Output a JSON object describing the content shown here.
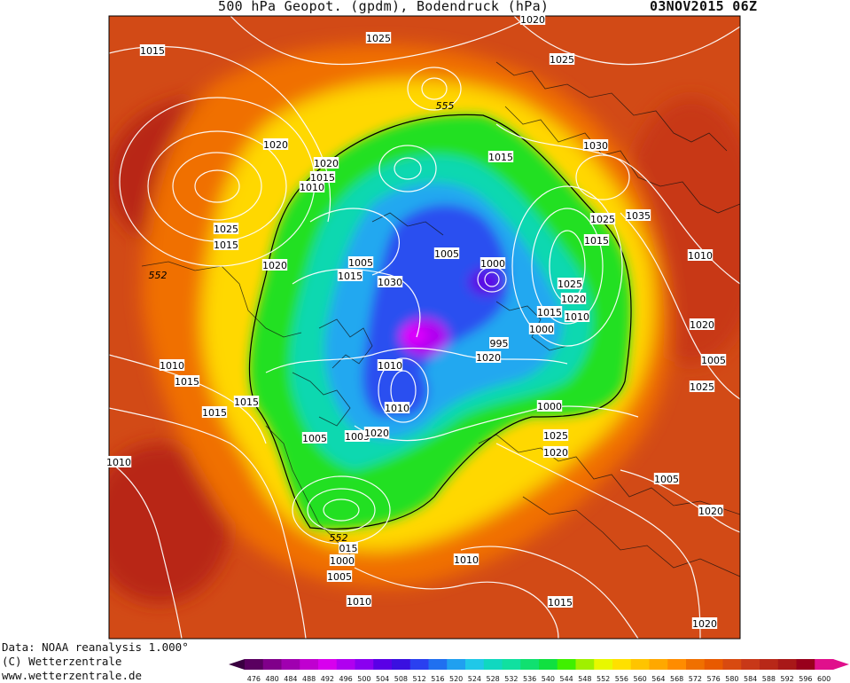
{
  "header": {
    "title": "500 hPa Geopot. (gpdm), Bodendruck (hPa)",
    "date": "03NOV2015 06Z"
  },
  "footer": {
    "data_source": "Data: NOAA reanalysis 1.000°",
    "copyright": "(C) Wetterzentrale",
    "website": "www.wetterzentrale.de"
  },
  "legend": {
    "values": [
      476,
      480,
      484,
      488,
      492,
      496,
      500,
      504,
      508,
      512,
      516,
      520,
      524,
      528,
      532,
      536,
      540,
      544,
      548,
      552,
      556,
      560,
      564,
      568,
      572,
      576,
      580,
      584,
      588,
      592,
      596,
      600
    ],
    "colors": [
      "#5a0060",
      "#80008a",
      "#a000b0",
      "#c000d0",
      "#d800ee",
      "#b000f0",
      "#8a00f0",
      "#5a00e6",
      "#3a10e0",
      "#2a40f0",
      "#2070f0",
      "#20a0f0",
      "#20c8e8",
      "#10d8c0",
      "#10e0a0",
      "#10e070",
      "#10e040",
      "#40f000",
      "#a0f000",
      "#e8f800",
      "#ffe000",
      "#ffc400",
      "#ffa800",
      "#ff8c00",
      "#f07000",
      "#e85a00",
      "#d84a10",
      "#c83818",
      "#b82818",
      "#a81818",
      "#98001c",
      "#e0108c"
    ]
  },
  "isobar_labels": [
    {
      "text": "1015"
    },
    {
      "text": "1025"
    },
    {
      "text": "1020"
    },
    {
      "text": "1025"
    },
    {
      "text": "1020"
    },
    {
      "text": "1020"
    },
    {
      "text": "1015"
    },
    {
      "text": "1010"
    },
    {
      "text": "1015"
    },
    {
      "text": "1030"
    },
    {
      "text": "1025"
    },
    {
      "text": "1015"
    },
    {
      "text": "1020"
    },
    {
      "text": "1025"
    },
    {
      "text": "1035"
    },
    {
      "text": "1015"
    },
    {
      "text": "1010"
    },
    {
      "text": "1005"
    },
    {
      "text": "1000"
    },
    {
      "text": "1005"
    },
    {
      "text": "1015"
    },
    {
      "text": "1030"
    },
    {
      "text": "1025"
    },
    {
      "text": "1020"
    },
    {
      "text": "1015"
    },
    {
      "text": "1010"
    },
    {
      "text": "1000"
    },
    {
      "text": "995"
    },
    {
      "text": "1020"
    },
    {
      "text": "1020"
    },
    {
      "text": "1005"
    },
    {
      "text": "1010"
    },
    {
      "text": "1015"
    },
    {
      "text": "1015"
    },
    {
      "text": "1015"
    },
    {
      "text": "1010"
    },
    {
      "text": "1010"
    },
    {
      "text": "1005"
    },
    {
      "text": "1020"
    },
    {
      "text": "1005"
    },
    {
      "text": "1000"
    },
    {
      "text": "1025"
    },
    {
      "text": "1020"
    },
    {
      "text": "1025"
    },
    {
      "text": "1005"
    },
    {
      "text": "1020"
    },
    {
      "text": "1010"
    },
    {
      "text": "015"
    },
    {
      "text": "1000"
    },
    {
      "text": "1005"
    },
    {
      "text": "1010"
    },
    {
      "text": "1010"
    },
    {
      "text": "1015"
    },
    {
      "text": "1020"
    },
    {
      "text": "1015"
    }
  ],
  "contour_labels": [
    {
      "text": "555"
    },
    {
      "text": "552"
    },
    {
      "text": "552"
    }
  ]
}
